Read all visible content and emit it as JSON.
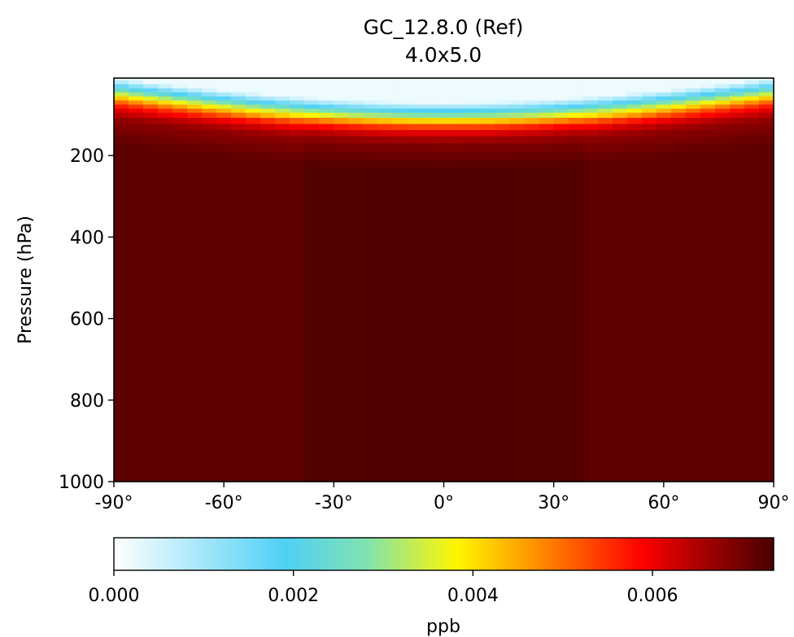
{
  "chart_data": {
    "type": "heatmap",
    "title": "GC_12.8.0 (Ref)",
    "subtitle": "4.0x5.0",
    "xlabel": "",
    "ylabel": "Pressure (hPa)",
    "x_range": [
      -90,
      90
    ],
    "y_range": [
      1000,
      10
    ],
    "y_inverted": true,
    "x_ticks": [
      -90,
      -60,
      -30,
      0,
      30,
      60,
      90
    ],
    "x_tick_labels": [
      "-90°",
      "-60°",
      "-30°",
      "0°",
      "30°",
      "60°",
      "90°"
    ],
    "y_ticks": [
      200,
      400,
      600,
      800,
      1000
    ],
    "y_tick_labels": [
      "200",
      "400",
      "600",
      "800",
      "1000"
    ],
    "colorbar": {
      "label": "ppb",
      "range": [
        0,
        0.00735
      ],
      "ticks": [
        0.0,
        0.002,
        0.004,
        0.006
      ],
      "tick_labels": [
        "0.000",
        "0.002",
        "0.004",
        "0.006"
      ],
      "colormap": "WhGrYlRd",
      "stops": [
        [
          0.0,
          "#ffffff"
        ],
        [
          0.26,
          "#4fd0f6"
        ],
        [
          0.38,
          "#7ee2b2"
        ],
        [
          0.52,
          "#fff600"
        ],
        [
          0.6,
          "#ffb300"
        ],
        [
          0.7,
          "#ff5a00"
        ],
        [
          0.8,
          "#ff0000"
        ],
        [
          0.9,
          "#a00000"
        ],
        [
          1.0,
          "#4a0000"
        ]
      ]
    },
    "field": {
      "description_free_values": true,
      "lat_step": 4,
      "levels_hpa": [
        10,
        20,
        30,
        40,
        50,
        60,
        70,
        80,
        90,
        100,
        115,
        130,
        145,
        160,
        180,
        200,
        220,
        240,
        260,
        280,
        300,
        350,
        400,
        450,
        500,
        550,
        600,
        650,
        700,
        750,
        800,
        850,
        900,
        950,
        1000
      ],
      "pole_value_profile_ppb": [
        0.0002,
        0.0009,
        0.0018,
        0.0027,
        0.0036,
        0.0044,
        0.0052,
        0.0058,
        0.0062,
        0.0065,
        0.0068,
        0.0069,
        0.007,
        0.0071,
        0.0072,
        0.0072,
        0.0072,
        0.0072,
        0.0072,
        0.0072,
        0.0072,
        0.0072,
        0.0072,
        0.0072,
        0.0072,
        0.0072,
        0.0072,
        0.0072,
        0.0072,
        0.0072,
        0.0072,
        0.0072,
        0.0072,
        0.0072,
        0.0072
      ],
      "tropopause_lift_ppb_equator": 0.0035
    }
  }
}
